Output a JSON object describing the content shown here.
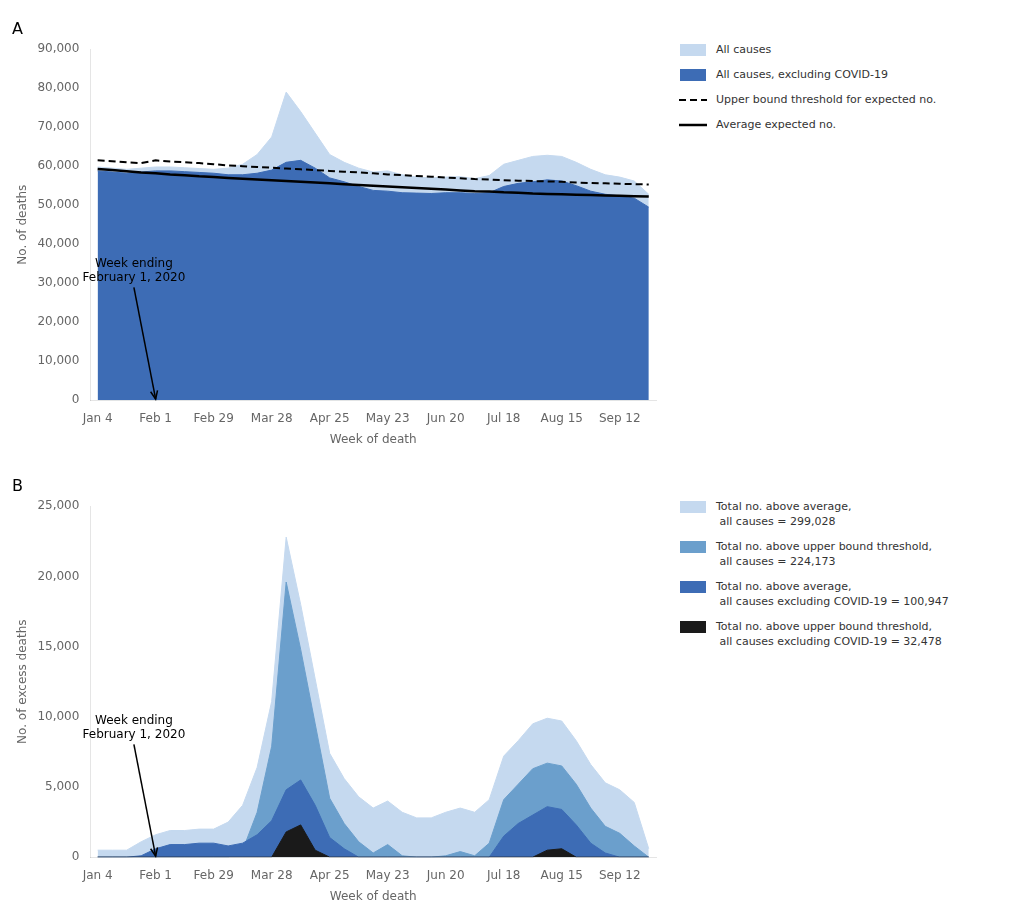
{
  "chart_data": [
    {
      "type": "line",
      "title": "A",
      "x_label": "Week of death",
      "y_label": "No. of deaths",
      "categories": [
        "Jan 4",
        null,
        null,
        null,
        "Feb 1",
        null,
        null,
        null,
        "Feb 29",
        null,
        null,
        null,
        "Mar 28",
        null,
        null,
        null,
        "Apr 25",
        null,
        null,
        null,
        "May 23",
        null,
        null,
        null,
        "Jun 20",
        null,
        null,
        null,
        "Jul 18",
        null,
        null,
        null,
        "Aug 15",
        null,
        null,
        null,
        "Sep 12",
        null,
        null
      ],
      "series": [
        {
          "name": "All causes",
          "type": "area",
          "color": "#c5d9ef",
          "values": [
            59800,
            59500,
            59200,
            59500,
            59800,
            59800,
            59600,
            59400,
            59200,
            59500,
            60500,
            63000,
            67500,
            79000,
            74000,
            68500,
            63000,
            61000,
            59500,
            58500,
            58800,
            57800,
            57200,
            57000,
            57200,
            57300,
            56800,
            57600,
            60500,
            61500,
            62500,
            62800,
            62500,
            61000,
            59200,
            57800,
            57200,
            56200,
            52800
          ]
        },
        {
          "name": "All causes, excluding COVID-19",
          "type": "area",
          "color": "#3d6cb5",
          "values": [
            58800,
            58500,
            58200,
            58500,
            58800,
            58800,
            58600,
            58400,
            58200,
            57800,
            57800,
            58200,
            59000,
            61000,
            61500,
            59500,
            57000,
            56000,
            54800,
            53800,
            53600,
            53200,
            53100,
            53000,
            53200,
            53200,
            53000,
            53200,
            54800,
            55600,
            56000,
            56500,
            56200,
            55000,
            53600,
            52800,
            52400,
            51800,
            49500
          ]
        },
        {
          "name": "Upper bound threshold for expected no.",
          "type": "line",
          "line_style": "dashed",
          "color": "#000000",
          "values": [
            61500,
            61300,
            61000,
            60800,
            61500,
            61200,
            61000,
            60800,
            60500,
            60200,
            60000,
            59800,
            59600,
            59400,
            59200,
            59000,
            58800,
            58600,
            58400,
            58200,
            57900,
            57700,
            57500,
            57300,
            57100,
            56900,
            56700,
            56600,
            56400,
            56300,
            56200,
            56100,
            56000,
            55800,
            55700,
            55600,
            55500,
            55400,
            55300
          ]
        },
        {
          "name": "Average expected no.",
          "type": "line",
          "line_style": "solid",
          "color": "#000000",
          "values": [
            59300,
            59000,
            58700,
            58400,
            58200,
            57900,
            57700,
            57400,
            57200,
            57000,
            56800,
            56600,
            56400,
            56200,
            56000,
            55800,
            55600,
            55400,
            55200,
            55000,
            54800,
            54600,
            54400,
            54200,
            54000,
            53800,
            53600,
            53500,
            53300,
            53200,
            53000,
            52900,
            52800,
            52700,
            52600,
            52500,
            52400,
            52300,
            52200
          ]
        }
      ],
      "ylim": [
        0,
        90000
      ],
      "yticks": [
        0,
        {
          "value": 10000,
          "label": "10,000"
        },
        {
          "value": 20000,
          "label": "20,000"
        },
        {
          "value": 30000,
          "label": "30,000"
        },
        {
          "value": 40000,
          "label": "40,000"
        },
        {
          "value": 50000,
          "label": "50,000"
        },
        {
          "value": 60000,
          "label": "60,000"
        },
        {
          "value": 70000,
          "label": "70,000"
        },
        {
          "value": 80000,
          "label": "80,000"
        },
        {
          "value": 90000,
          "label": "90,000"
        }
      ],
      "annotations": [
        {
          "text": "Week ending\nFebruary 1, 2020",
          "x": "Feb 1",
          "y": 0
        }
      ],
      "legend": "upper right",
      "grid": false
    },
    {
      "type": "line",
      "title": "B",
      "x_label": "Week of death",
      "y_label": "No. of excess deaths",
      "categories": [
        "Jan 4",
        null,
        null,
        null,
        "Feb 1",
        null,
        null,
        null,
        "Feb 29",
        null,
        null,
        null,
        "Mar 28",
        null,
        null,
        null,
        "Apr 25",
        null,
        null,
        null,
        "May 23",
        null,
        null,
        null,
        "Jun 20",
        null,
        null,
        null,
        "Jul 18",
        null,
        null,
        null,
        "Aug 15",
        null,
        null,
        null,
        "Sep 12",
        null,
        null
      ],
      "series": [
        {
          "name": "Total no. above average,\n all causes = 299,028",
          "type": "area",
          "color": "#c5d9ef",
          "values": [
            500,
            500,
            500,
            1100,
            1600,
            1900,
            1900,
            2000,
            2000,
            2500,
            3700,
            6400,
            11100,
            22800,
            18000,
            12700,
            7400,
            5600,
            4300,
            3500,
            4000,
            3200,
            2800,
            2800,
            3200,
            3500,
            3200,
            4100,
            7200,
            8300,
            9500,
            9900,
            9700,
            8300,
            6600,
            5300,
            4800,
            3900,
            600
          ]
        },
        {
          "name": "Total no. above upper bound threshold,\n all causes = 224,173",
          "type": "area",
          "color": "#6b9fcc",
          "values": [
            0,
            0,
            0,
            0,
            0,
            0,
            0,
            0,
            0,
            0,
            500,
            3200,
            7900,
            19600,
            14800,
            9500,
            4200,
            2400,
            1100,
            300,
            900,
            100,
            0,
            0,
            100,
            400,
            100,
            1000,
            4100,
            5200,
            6300,
            6700,
            6500,
            5200,
            3500,
            2200,
            1700,
            800,
            0
          ]
        },
        {
          "name": "Total no. above average,\n all causes excluding COVID-19 = 100,947",
          "type": "area",
          "color": "#3d6cb5",
          "values": [
            0,
            0,
            0,
            100,
            600,
            900,
            900,
            1000,
            1000,
            800,
            1000,
            1600,
            2600,
            4800,
            5500,
            3700,
            1400,
            600,
            0,
            0,
            0,
            0,
            0,
            0,
            0,
            0,
            0,
            0,
            1500,
            2400,
            3000,
            3600,
            3400,
            2300,
            1000,
            300,
            0,
            0,
            0
          ]
        },
        {
          "name": "Total no. above upper bound threshold,\n all causes excluding COVID-19 = 32,478",
          "type": "area",
          "color": "#1a1a1a",
          "values": [
            0,
            0,
            0,
            0,
            0,
            0,
            0,
            0,
            0,
            0,
            0,
            0,
            0,
            1800,
            2300,
            500,
            0,
            0,
            0,
            0,
            0,
            0,
            0,
            0,
            0,
            0,
            0,
            0,
            0,
            0,
            0,
            500,
            600,
            0,
            0,
            0,
            0,
            0,
            0
          ]
        }
      ],
      "ylim": [
        0,
        25000
      ],
      "yticks": [
        0,
        {
          "value": 5000,
          "label": "5,000"
        },
        {
          "value": 10000,
          "label": "10,000"
        },
        {
          "value": 15000,
          "label": "15,000"
        },
        {
          "value": 20000,
          "label": "20,000"
        },
        {
          "value": 25000,
          "label": "25,000"
        }
      ],
      "annotations": [
        {
          "text": "Week ending\nFebruary 1, 2020",
          "x": "Feb 1",
          "y": 0
        }
      ],
      "legend": "upper right",
      "grid": false
    }
  ]
}
